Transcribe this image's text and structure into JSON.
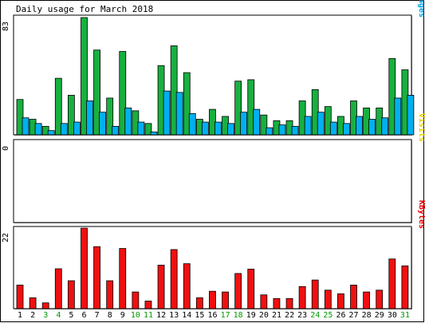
{
  "chart_data": {
    "type": "bar",
    "title": "Daily usage for March 2018",
    "categories": [
      "1",
      "2",
      "3",
      "4",
      "5",
      "6",
      "7",
      "8",
      "9",
      "10",
      "11",
      "12",
      "13",
      "14",
      "15",
      "16",
      "17",
      "18",
      "19",
      "20",
      "21",
      "22",
      "23",
      "24",
      "25",
      "26",
      "27",
      "28",
      "29",
      "30",
      "31"
    ],
    "weekend_days": [
      3,
      4,
      10,
      11,
      17,
      18,
      24,
      25,
      31
    ],
    "panels": [
      {
        "label_segments": [
          {
            "text": "Pages",
            "color": "#00a0e0"
          },
          {
            "text": "/",
            "color": "#808080"
          },
          {
            "text": "Files",
            "color": "#1e90ff"
          },
          {
            "text": "/",
            "color": "#808080"
          },
          {
            "text": "Hits",
            "color": "#00c060"
          }
        ],
        "max_label": "83",
        "ylim": [
          0,
          83
        ],
        "series": [
          {
            "name": "Hits",
            "color": "#18b040",
            "values": [
              25,
              11,
              6,
              40,
              28,
              83,
              60,
              26,
              59,
              17,
              8,
              49,
              63,
              44,
              11,
              18,
              13,
              38,
              39,
              14,
              10,
              10,
              24,
              32,
              20,
              13,
              24,
              19,
              19,
              54,
              46
            ]
          },
          {
            "name": "Files",
            "color": "#00b0f0",
            "values": [
              12,
              8,
              3,
              8,
              9,
              24,
              16,
              6,
              19,
              9,
              2,
              31,
              30,
              15,
              9,
              9,
              8,
              16,
              18,
              5,
              7,
              6,
              13,
              16,
              9,
              8,
              13,
              11,
              12,
              26,
              28
            ]
          }
        ]
      },
      {
        "label_segments": [
          {
            "text": "Visits",
            "color": "#e8d000"
          }
        ],
        "max_label": "0",
        "ylim": [
          0,
          1
        ],
        "series": []
      },
      {
        "label_segments": [
          {
            "text": "KBytes",
            "color": "#e00000"
          }
        ],
        "max_label": "22",
        "ylim": [
          0,
          22
        ],
        "series": [
          {
            "name": "KBytes",
            "color": "#f01010",
            "values": [
              6.5,
              3,
              1.6,
              11,
              7.7,
              22.2,
              17.1,
              7.7,
              16.6,
              4.6,
              2.1,
              12,
              16.3,
              12.4,
              3,
              4.8,
              4.6,
              9.7,
              10.9,
              3.8,
              2.8,
              2.8,
              6.1,
              7.9,
              5.1,
              4.1,
              6.5,
              4.6,
              5.1,
              13.7,
              11.8
            ]
          }
        ]
      }
    ]
  }
}
